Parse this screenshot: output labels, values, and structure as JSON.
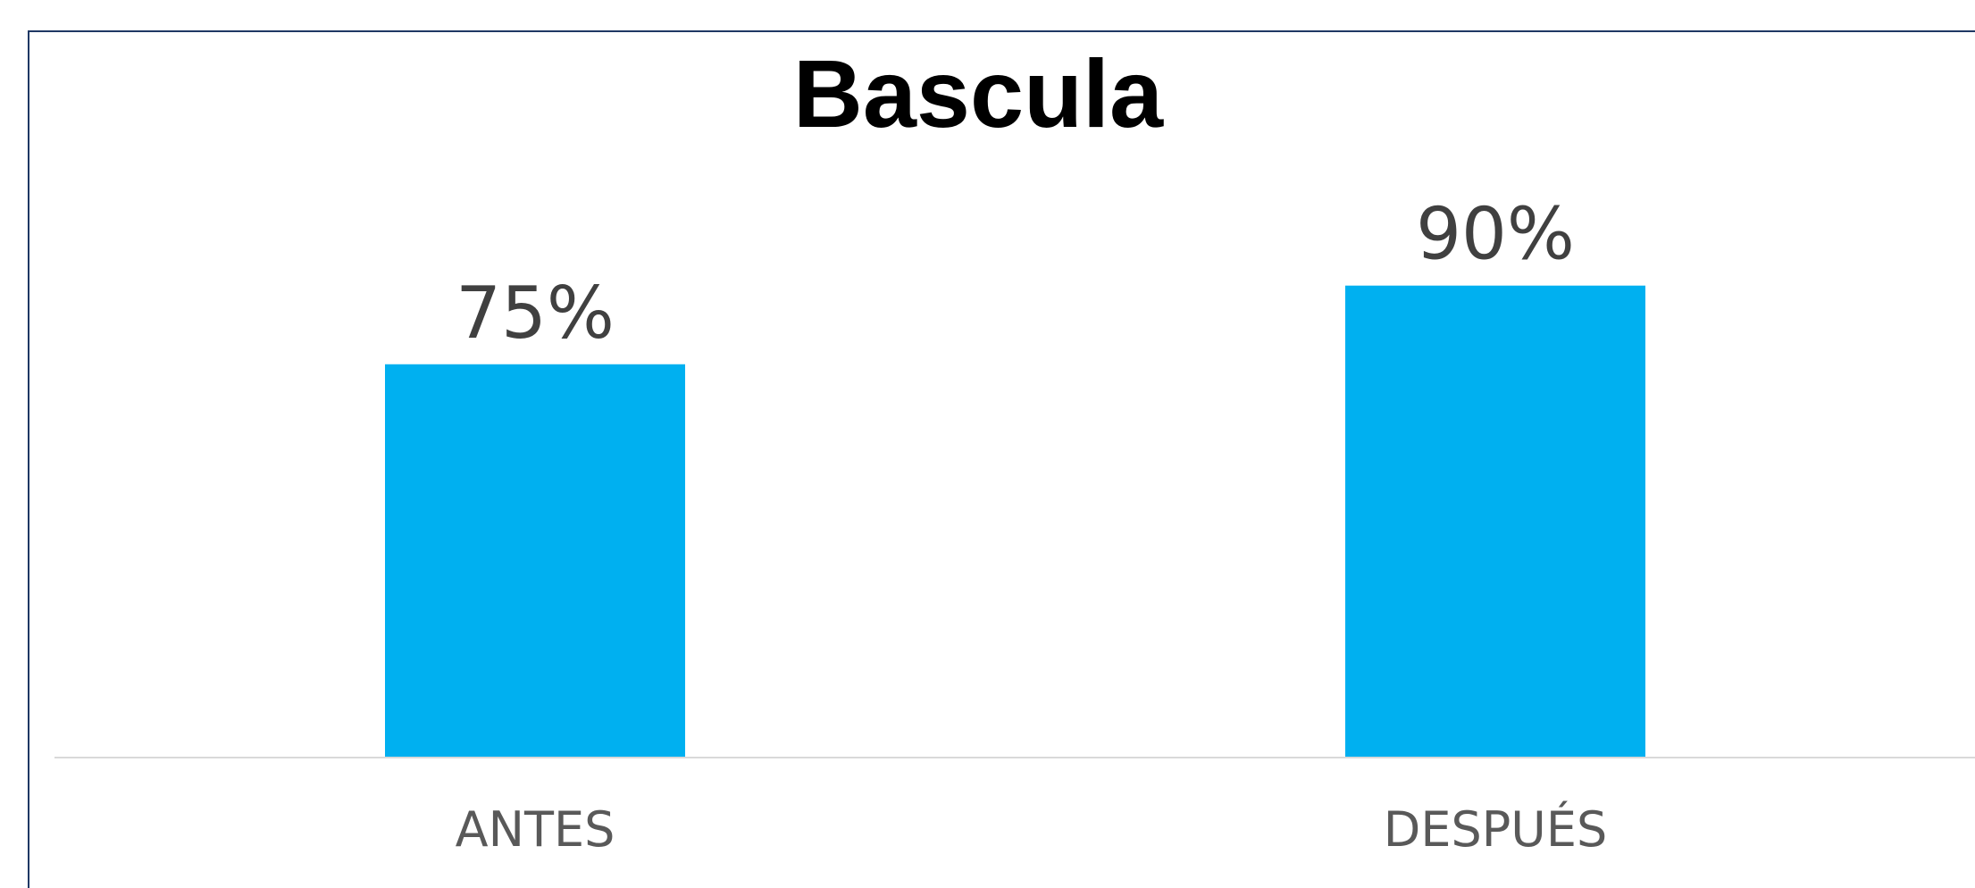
{
  "chart_data": {
    "type": "bar",
    "title": "Bascula",
    "categories": [
      "ANTES",
      "DESPUÉS"
    ],
    "values": [
      75,
      90
    ],
    "data_labels": [
      "75%",
      "90%"
    ],
    "value_unit": "%",
    "ylim": [
      0,
      100
    ],
    "grid": false,
    "legend": "none",
    "bar_color": "#00b0f0",
    "axis_color": "#d9d9d9",
    "frame_color": "#1f3864"
  }
}
